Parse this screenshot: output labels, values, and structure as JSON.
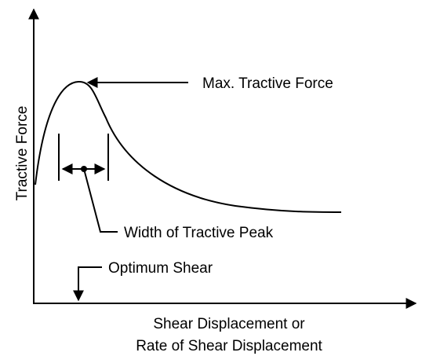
{
  "axes": {
    "y_label": "Tractive Force",
    "x_label_line1": "Shear Displacement or",
    "x_label_line2": "Rate of Shear Displacement"
  },
  "annotations": {
    "peak": "Max. Tractive Force",
    "width": "Width of Tractive Peak",
    "optimum": "Optimum Shear"
  }
}
